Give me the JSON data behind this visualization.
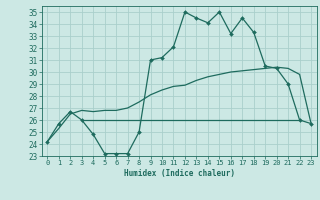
{
  "xlabel": "Humidex (Indice chaleur)",
  "background_color": "#cce8e4",
  "grid_color": "#aacfcc",
  "line_color": "#1e6b5e",
  "xlim": [
    -0.5,
    23.5
  ],
  "ylim": [
    23,
    35.5
  ],
  "yticks": [
    23,
    24,
    25,
    26,
    27,
    28,
    29,
    30,
    31,
    32,
    33,
    34,
    35
  ],
  "xticks": [
    0,
    1,
    2,
    3,
    4,
    5,
    6,
    7,
    8,
    9,
    10,
    11,
    12,
    13,
    14,
    15,
    16,
    17,
    18,
    19,
    20,
    21,
    22,
    23
  ],
  "curve1_x": [
    0,
    1,
    2,
    3,
    4,
    5,
    6,
    7,
    8,
    9,
    10,
    11,
    12,
    13,
    14,
    15,
    16,
    17,
    18,
    19,
    20,
    21,
    22,
    23
  ],
  "curve1_y": [
    24.2,
    25.7,
    26.7,
    26.0,
    24.8,
    23.2,
    23.2,
    23.2,
    25.0,
    31.0,
    31.2,
    32.1,
    35.0,
    34.5,
    34.1,
    35.0,
    33.2,
    34.5,
    33.3,
    30.5,
    30.3,
    29.0,
    26.0,
    25.7
  ],
  "curve2_x": [
    0,
    1,
    2,
    3,
    4,
    5,
    6,
    7,
    8,
    9,
    10,
    11,
    12,
    13,
    14,
    15,
    16,
    17,
    18,
    19,
    20,
    21,
    22,
    23
  ],
  "curve2_y": [
    24.2,
    25.3,
    26.5,
    26.8,
    26.7,
    26.8,
    26.8,
    27.0,
    27.5,
    28.1,
    28.5,
    28.8,
    28.9,
    29.3,
    29.6,
    29.8,
    30.0,
    30.1,
    30.2,
    30.3,
    30.4,
    30.3,
    29.8,
    25.7
  ],
  "curve3_x": [
    3,
    14,
    22
  ],
  "curve3_y": [
    26.0,
    26.0,
    26.0
  ]
}
